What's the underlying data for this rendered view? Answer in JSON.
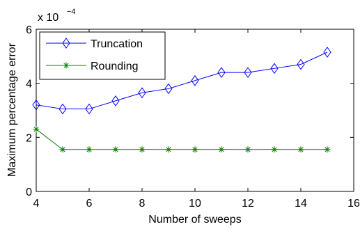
{
  "chart_data": {
    "type": "line",
    "xlabel": "Number of sweeps",
    "ylabel": "Maximum percentage error",
    "xlim": [
      4,
      16
    ],
    "ylim": [
      0,
      6
    ],
    "xticks": [
      4,
      6,
      8,
      10,
      12,
      14,
      16
    ],
    "yticks": [
      0,
      2,
      4,
      6
    ],
    "y_multiplier_base": "x 10",
    "y_multiplier_exponent": "−4",
    "grid": false,
    "legend_position": "top-left",
    "series": [
      {
        "name": "Truncation",
        "marker": "diamond",
        "color": "#0000ff",
        "x": [
          4,
          5,
          6,
          7,
          8,
          9,
          10,
          11,
          12,
          13,
          14,
          15
        ],
        "y": [
          3.2,
          3.05,
          3.05,
          3.35,
          3.65,
          3.8,
          4.1,
          4.4,
          4.4,
          4.55,
          4.7,
          5.15
        ]
      },
      {
        "name": "Rounding",
        "marker": "asterisk",
        "color": "#008000",
        "x": [
          4,
          5,
          6,
          7,
          8,
          9,
          10,
          11,
          12,
          13,
          14,
          15
        ],
        "y": [
          2.3,
          1.55,
          1.55,
          1.55,
          1.55,
          1.55,
          1.55,
          1.55,
          1.55,
          1.55,
          1.55,
          1.55
        ]
      }
    ]
  }
}
